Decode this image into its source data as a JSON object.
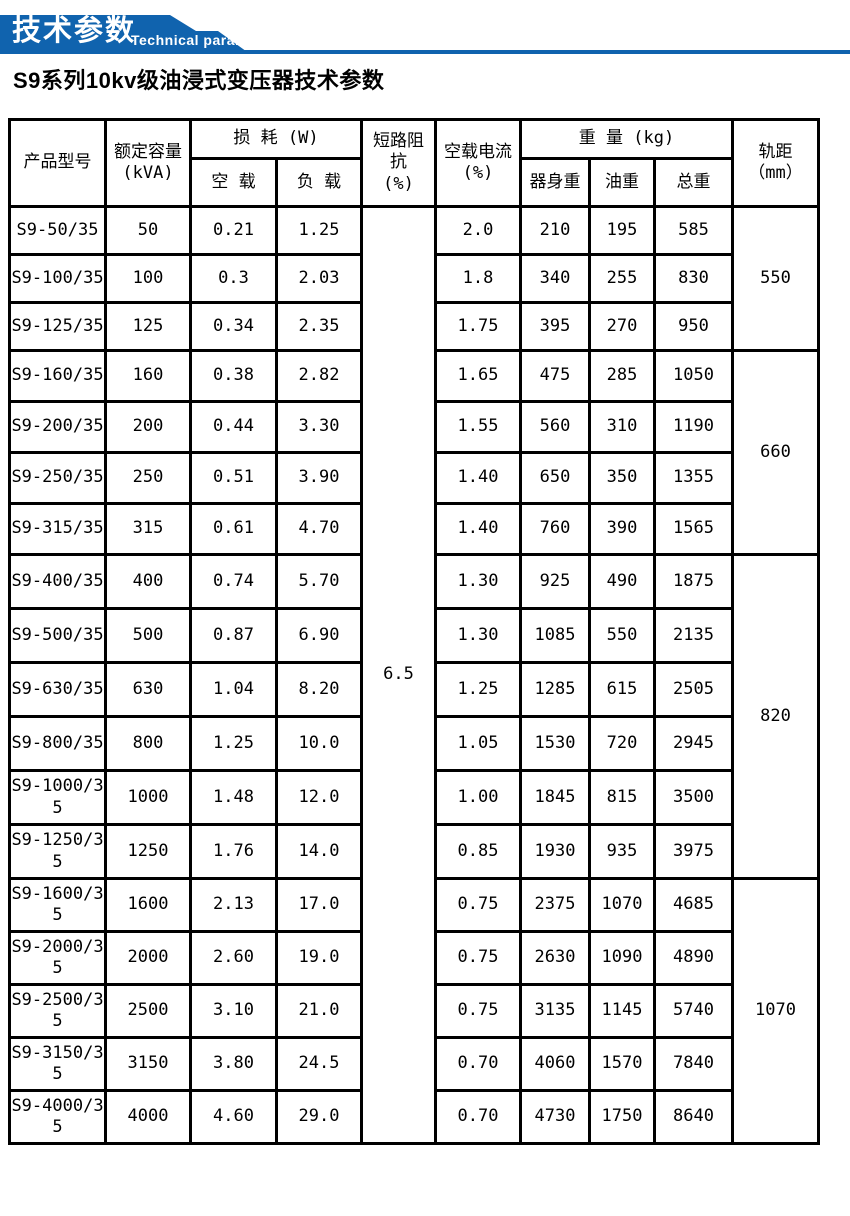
{
  "banner": {
    "title_cn": "技术参数",
    "title_en": "Technical parameter",
    "accent_color": "#1063ae"
  },
  "page_title": "S9系列10kv级油浸式变压器技术参数",
  "table": {
    "headers": {
      "product_model": "产品型号",
      "rated_capacity": "额定容量\n(kVA)",
      "loss": "损 耗 (W)",
      "no_load": "空 载",
      "load": "负 载",
      "impedance": "短路阻\n抗\n(%)",
      "no_load_current": "空载电流\n(%)",
      "weight": "重 量 (kg)",
      "body_weight": "器身重",
      "oil_weight": "油重",
      "total_weight": "总重",
      "gauge": "轨距\n（mm）"
    },
    "short_circuit_impedance_value": "6.5",
    "gauge_groups": [
      {
        "value": "550",
        "row_count": 3
      },
      {
        "value": "660",
        "row_count": 4
      },
      {
        "value": "820",
        "row_count": 6
      },
      {
        "value": "1070",
        "row_count": 5
      }
    ],
    "rows": [
      {
        "model": "S9-50/35",
        "capacity": "50",
        "no_load_loss": "0.21",
        "load_loss": "1.25",
        "no_load_current": "2.0",
        "body_weight": "210",
        "oil_weight": "195",
        "total_weight": "585"
      },
      {
        "model": "S9-100/35",
        "capacity": "100",
        "no_load_loss": "0.3",
        "load_loss": "2.03",
        "no_load_current": "1.8",
        "body_weight": "340",
        "oil_weight": "255",
        "total_weight": "830"
      },
      {
        "model": "S9-125/35",
        "capacity": "125",
        "no_load_loss": "0.34",
        "load_loss": "2.35",
        "no_load_current": "1.75",
        "body_weight": "395",
        "oil_weight": "270",
        "total_weight": "950"
      },
      {
        "model": "S9-160/35",
        "capacity": "160",
        "no_load_loss": "0.38",
        "load_loss": "2.82",
        "no_load_current": "1.65",
        "body_weight": "475",
        "oil_weight": "285",
        "total_weight": "1050"
      },
      {
        "model": "S9-200/35",
        "capacity": "200",
        "no_load_loss": "0.44",
        "load_loss": "3.30",
        "no_load_current": "1.55",
        "body_weight": "560",
        "oil_weight": "310",
        "total_weight": "1190"
      },
      {
        "model": "S9-250/35",
        "capacity": "250",
        "no_load_loss": "0.51",
        "load_loss": "3.90",
        "no_load_current": "1.40",
        "body_weight": "650",
        "oil_weight": "350",
        "total_weight": "1355"
      },
      {
        "model": "S9-315/35",
        "capacity": "315",
        "no_load_loss": "0.61",
        "load_loss": "4.70",
        "no_load_current": "1.40",
        "body_weight": "760",
        "oil_weight": "390",
        "total_weight": "1565"
      },
      {
        "model": "S9-400/35",
        "capacity": "400",
        "no_load_loss": "0.74",
        "load_loss": "5.70",
        "no_load_current": "1.30",
        "body_weight": "925",
        "oil_weight": "490",
        "total_weight": "1875"
      },
      {
        "model": "S9-500/35",
        "capacity": "500",
        "no_load_loss": "0.87",
        "load_loss": "6.90",
        "no_load_current": "1.30",
        "body_weight": "1085",
        "oil_weight": "550",
        "total_weight": "2135"
      },
      {
        "model": "S9-630/35",
        "capacity": "630",
        "no_load_loss": "1.04",
        "load_loss": "8.20",
        "no_load_current": "1.25",
        "body_weight": "1285",
        "oil_weight": "615",
        "total_weight": "2505"
      },
      {
        "model": "S9-800/35",
        "capacity": "800",
        "no_load_loss": "1.25",
        "load_loss": "10.0",
        "no_load_current": "1.05",
        "body_weight": "1530",
        "oil_weight": "720",
        "total_weight": "2945"
      },
      {
        "model": "S9-1000/35",
        "capacity": "1000",
        "no_load_loss": "1.48",
        "load_loss": "12.0",
        "no_load_current": "1.00",
        "body_weight": "1845",
        "oil_weight": "815",
        "total_weight": "3500"
      },
      {
        "model": "S9-1250/35",
        "capacity": "1250",
        "no_load_loss": "1.76",
        "load_loss": "14.0",
        "no_load_current": "0.85",
        "body_weight": "1930",
        "oil_weight": "935",
        "total_weight": "3975"
      },
      {
        "model": "S9-1600/35",
        "capacity": "1600",
        "no_load_loss": "2.13",
        "load_loss": "17.0",
        "no_load_current": "0.75",
        "body_weight": "2375",
        "oil_weight": "1070",
        "total_weight": "4685"
      },
      {
        "model": "S9-2000/35",
        "capacity": "2000",
        "no_load_loss": "2.60",
        "load_loss": "19.0",
        "no_load_current": "0.75",
        "body_weight": "2630",
        "oil_weight": "1090",
        "total_weight": "4890"
      },
      {
        "model": "S9-2500/35",
        "capacity": "2500",
        "no_load_loss": "3.10",
        "load_loss": "21.0",
        "no_load_current": "0.75",
        "body_weight": "3135",
        "oil_weight": "1145",
        "total_weight": "5740"
      },
      {
        "model": "S9-3150/35",
        "capacity": "3150",
        "no_load_loss": "3.80",
        "load_loss": "24.5",
        "no_load_current": "0.70",
        "body_weight": "4060",
        "oil_weight": "1570",
        "total_weight": "7840"
      },
      {
        "model": "S9-4000/35",
        "capacity": "4000",
        "no_load_loss": "4.60",
        "load_loss": "29.0",
        "no_load_current": "0.70",
        "body_weight": "4730",
        "oil_weight": "1750",
        "total_weight": "8640"
      }
    ]
  }
}
